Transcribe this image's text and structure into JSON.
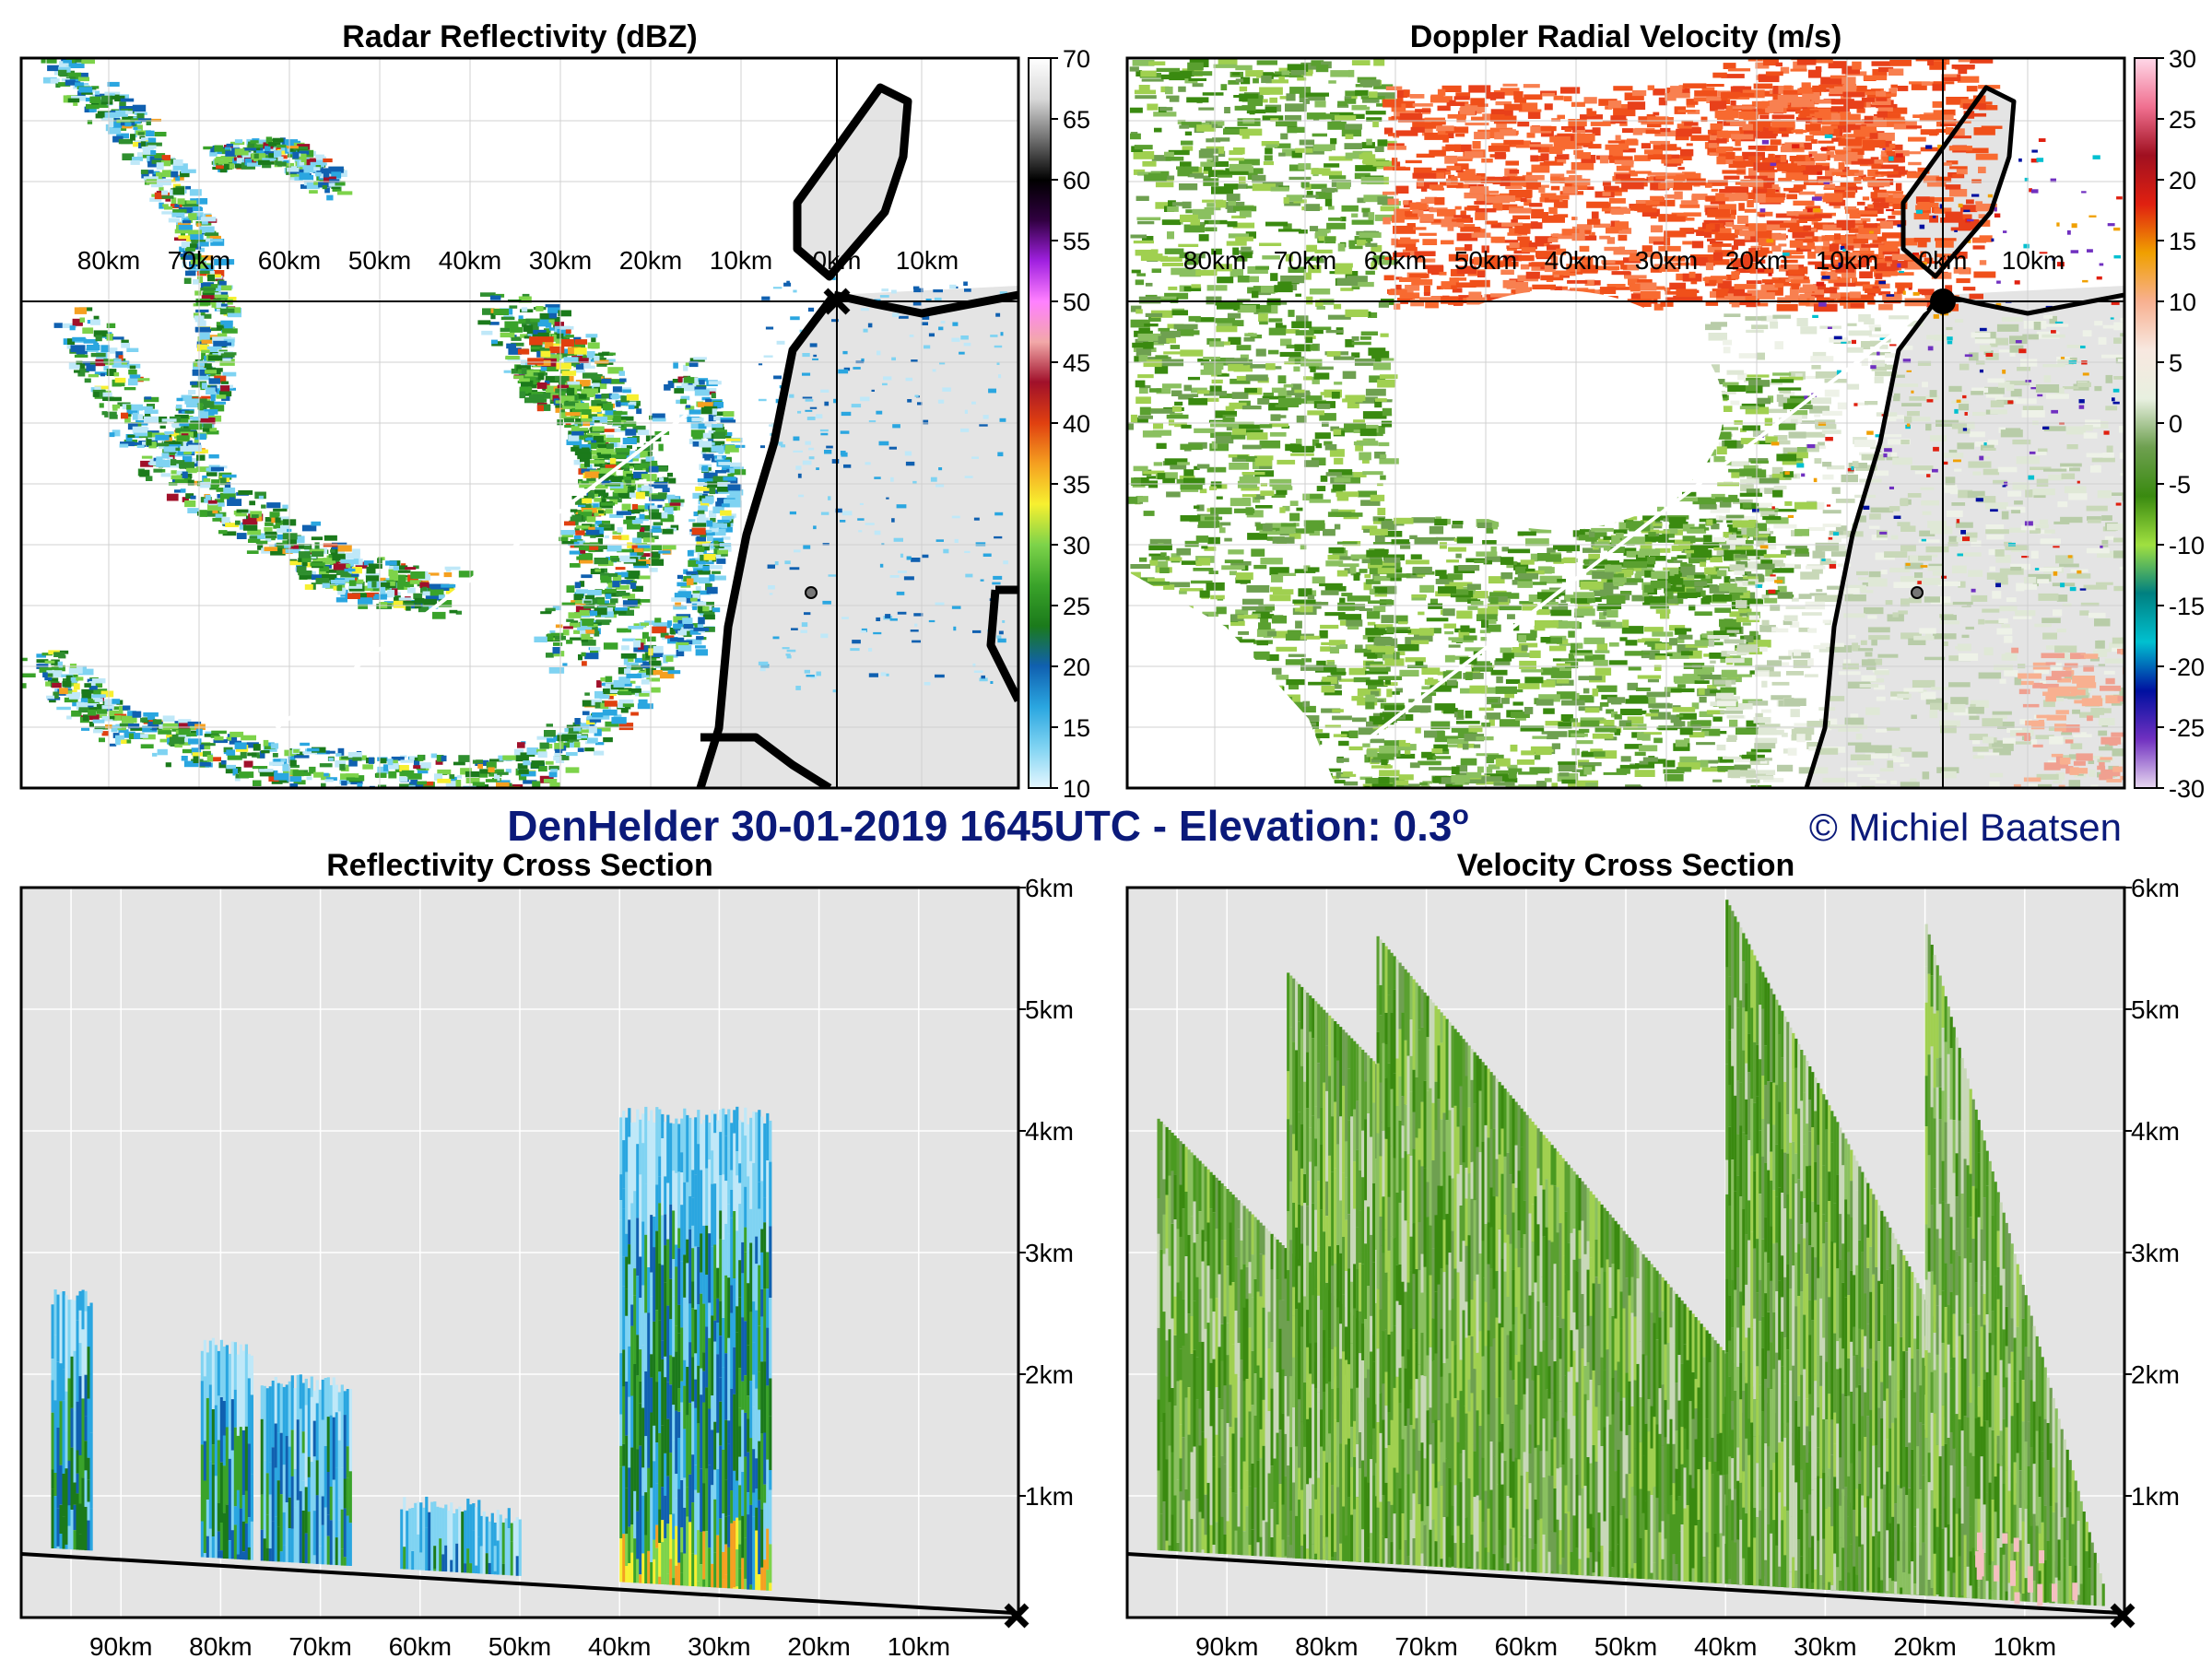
{
  "figure": {
    "main_title": "DenHelder 30-01-2019 1645UTC - Elevation: 0.3",
    "main_title_sup": "o",
    "copyright": "© Michiel Baatsen"
  },
  "colors": {
    "land": "#e4e4e4",
    "coast": "#000000",
    "section_line": "#ffffff",
    "title": "#0b1a7a"
  },
  "chart_data": [
    {
      "id": "reflectivity-ppi",
      "type": "heatmap",
      "title": "Radar Reflectivity (dBZ)",
      "x_ticks": [
        "80km",
        "70km",
        "60km",
        "50km",
        "40km",
        "30km",
        "20km",
        "10km",
        "0km",
        "10km"
      ],
      "colorbar": {
        "ticks": [
          "70",
          "65",
          "60",
          "55",
          "50",
          "45",
          "40",
          "35",
          "30",
          "25",
          "20",
          "15",
          "10"
        ],
        "range": [
          10,
          70
        ],
        "stops": [
          "#e6f7ff",
          "#7fd3f2",
          "#2aa6e0",
          "#1060b0",
          "#1b7a1b",
          "#3aa32a",
          "#7dd34a",
          "#f7f030",
          "#f5a020",
          "#e04010",
          "#a0102a",
          "#f2a8a8",
          "#ff80ff",
          "#a020e0",
          "#300040",
          "#000000",
          "#707070",
          "#d8d8d8",
          "#ffffff"
        ]
      },
      "section_line": {
        "from_km": [
          -88,
          -47
        ],
        "to_km": [
          -25,
          -12
        ]
      },
      "radar_site": "0km"
    },
    {
      "id": "velocity-ppi",
      "type": "heatmap",
      "title": "Doppler Radial Velocity (m/s)",
      "x_ticks": [
        "80km",
        "70km",
        "60km",
        "50km",
        "40km",
        "30km",
        "20km",
        "10km",
        "0km",
        "10km"
      ],
      "colorbar": {
        "ticks": [
          "30",
          "25",
          "20",
          "15",
          "10",
          "5",
          "0",
          "-5",
          "-10",
          "-15",
          "-20",
          "-25",
          "-30"
        ],
        "range": [
          -30,
          30
        ],
        "stops": [
          "#e8d8f0",
          "#7030c0",
          "#0010a0",
          "#00c0d0",
          "#008080",
          "#a0e040",
          "#3a8a10",
          "#6ea050",
          "#e8f0e0",
          "#f8e8e0",
          "#f8b090",
          "#f0a000",
          "#e02010",
          "#a01020",
          "#f07090",
          "#ffd8e8"
        ]
      },
      "section_line": {
        "from_km": [
          -88,
          -47
        ],
        "to_km": [
          0,
          0
        ]
      }
    },
    {
      "id": "reflectivity-cross-section",
      "type": "heatmap",
      "title": "Reflectivity Cross Section",
      "x_ticks": [
        "90km",
        "80km",
        "70km",
        "60km",
        "50km",
        "40km",
        "30km",
        "20km",
        "10km"
      ],
      "y_ticks": [
        "6km",
        "5km",
        "4km",
        "3km",
        "2km",
        "1km"
      ],
      "ylim_km": [
        0,
        6
      ],
      "xlim_km": [
        100,
        0
      ],
      "echo_columns": [
        {
          "x_from_km": 97,
          "x_to_km": 93,
          "top_km": 2.7
        },
        {
          "x_from_km": 82,
          "x_to_km": 77,
          "top_km": 2.3
        },
        {
          "x_from_km": 76,
          "x_to_km": 67,
          "top_km": 2.0
        },
        {
          "x_from_km": 62,
          "x_to_km": 54,
          "top_km": 1.0
        },
        {
          "x_from_km": 54,
          "x_to_km": 50,
          "top_km": 0.9
        },
        {
          "x_from_km": 40,
          "x_to_km": 25,
          "top_km": 4.2
        }
      ],
      "beam_floor_km": {
        "at_100km": 0.5,
        "at_0km": 0.0
      }
    },
    {
      "id": "velocity-cross-section",
      "type": "heatmap",
      "title": "Velocity Cross Section",
      "x_ticks": [
        "90km",
        "80km",
        "70km",
        "60km",
        "50km",
        "40km",
        "30km",
        "20km",
        "10km"
      ],
      "y_ticks": [
        "6km",
        "5km",
        "4km",
        "3km",
        "2km",
        "1km"
      ],
      "ylim_km": [
        0,
        6
      ],
      "xlim_km": [
        100,
        0
      ],
      "beam_floor_km": {
        "at_100km": 0.5,
        "at_0km": 0.0
      }
    }
  ]
}
